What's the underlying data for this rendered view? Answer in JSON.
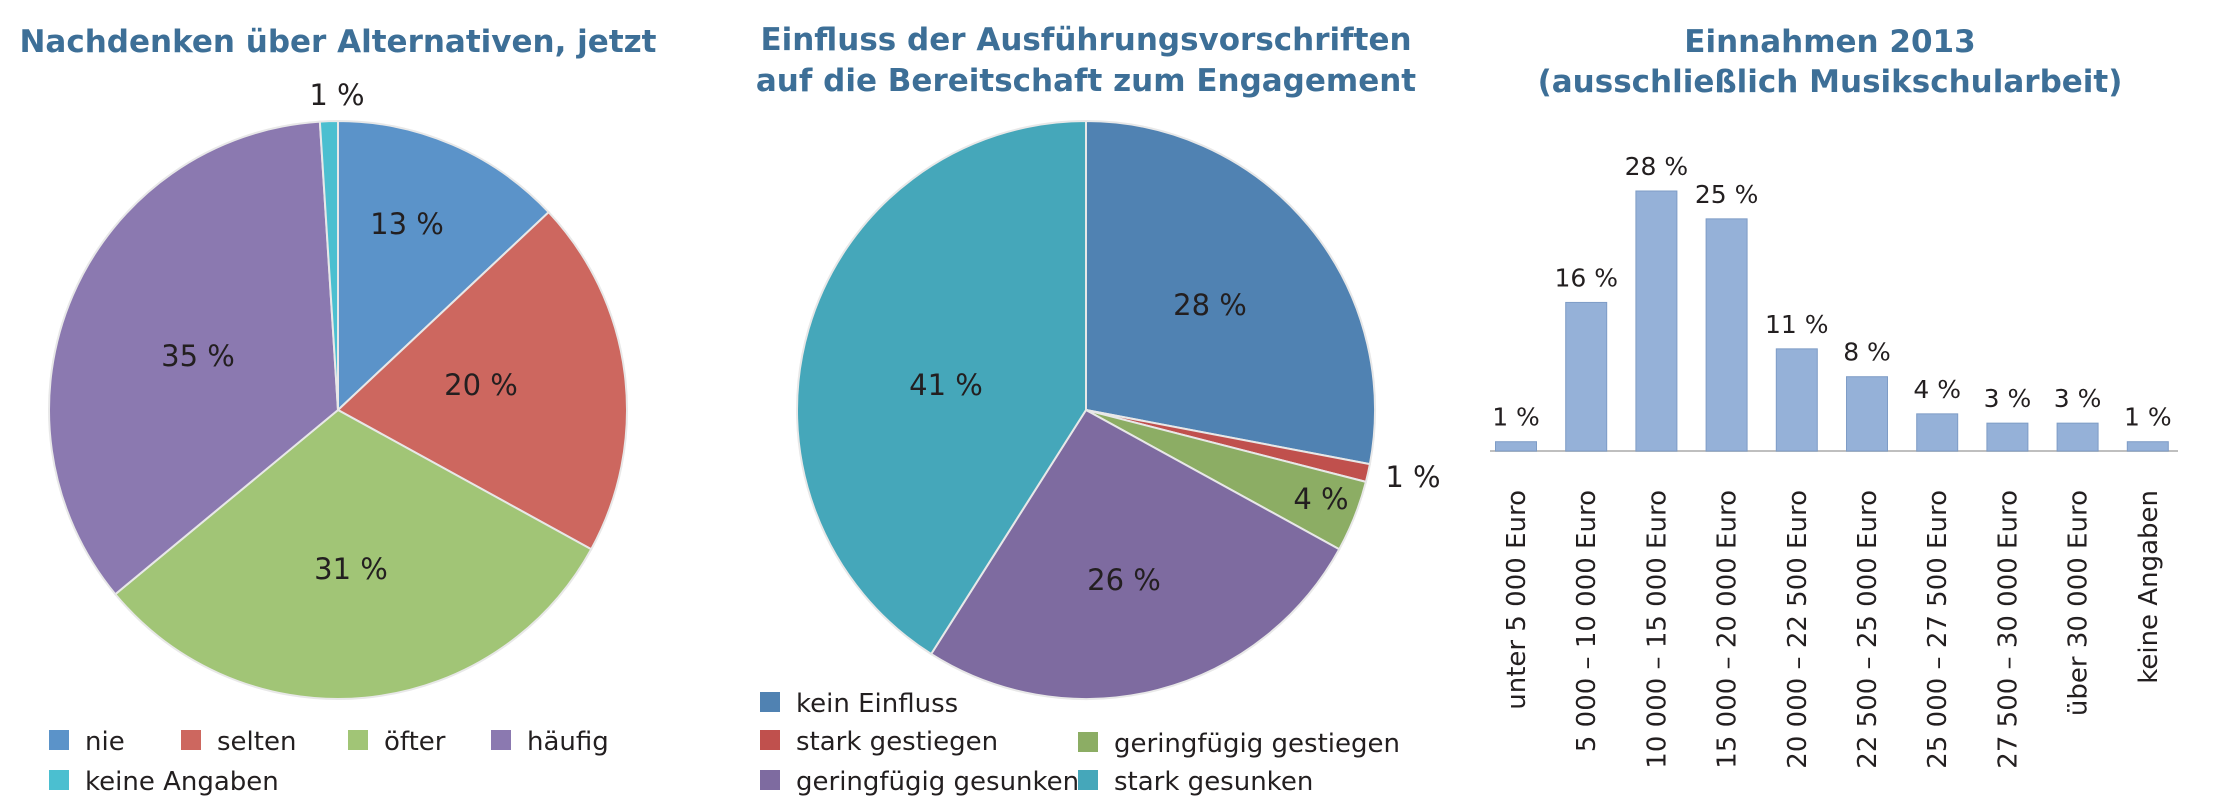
{
  "chart_data": [
    {
      "type": "pie",
      "title": "Nachdenken über Alternativen, jetzt",
      "categories": [
        "nie",
        "selten",
        "öfter",
        "häufig",
        "keine Angaben"
      ],
      "values": [
        13,
        20,
        31,
        35,
        1
      ],
      "labels": [
        "13 %",
        "20 %",
        "31 %",
        "35 %",
        "1 %"
      ],
      "colors": [
        "#5b93c9",
        "#cd675f",
        "#a1c576",
        "#8b79b0",
        "#4bbfd0"
      ],
      "start": "12 o'clock, clockwise",
      "legend": "bottom"
    },
    {
      "type": "pie",
      "title_lines": [
        "Einfluss der Ausführungsvorschriften",
        "auf die Bereitschaft zum Engagement"
      ],
      "categories": [
        "kein Einfluss",
        "stark gestiegen",
        "geringfügig gestiegen",
        "geringfügig gesunken",
        "stark gesunken"
      ],
      "values": [
        28,
        1,
        4,
        26,
        41
      ],
      "labels": [
        "28 %",
        "1 %",
        "4 %",
        "26 %",
        "41 %"
      ],
      "colors": [
        "#5082b2",
        "#c0504d",
        "#8cad64",
        "#7e6ba0",
        "#45a7ba"
      ],
      "start": "12 o'clock, clockwise",
      "legend": "bottom"
    },
    {
      "type": "bar",
      "title_lines": [
        "Einnahmen 2013",
        "(ausschließlich Musikschularbeit)"
      ],
      "categories": [
        "unter 5 000 Euro",
        "5 000 – 10 000 Euro",
        "10 000 – 15 000 Euro",
        "15 000 – 20 000 Euro",
        "20 000 – 22 500 Euro",
        "22 500 – 25 000 Euro",
        "25 000 – 27 500 Euro",
        "27 500 – 30 000 Euro",
        "über 30 000 Euro",
        "keine Angaben"
      ],
      "values": [
        1,
        16,
        28,
        25,
        11,
        8,
        4,
        3,
        3,
        1
      ],
      "labels": [
        "1 %",
        "16 %",
        "28 %",
        "25 %",
        "11 %",
        "8 %",
        "4 %",
        "3 %",
        "3 %",
        "1 %"
      ],
      "ylim": [
        0,
        28
      ],
      "grid": false,
      "bar_color": "#95b1d8",
      "title_color": "#3d6f97"
    }
  ]
}
